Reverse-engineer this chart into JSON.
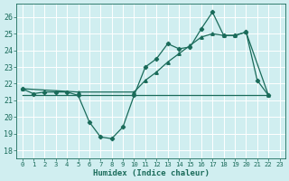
{
  "xlabel": "Humidex (Indice chaleur)",
  "bg_color": "#d0eef0",
  "grid_color": "#ffffff",
  "line_color": "#1a6b5a",
  "xlim": [
    -0.5,
    23.5
  ],
  "ylim": [
    17.5,
    26.8
  ],
  "yticks": [
    18,
    19,
    20,
    21,
    22,
    23,
    24,
    25,
    26
  ],
  "xticks": [
    0,
    1,
    2,
    3,
    4,
    5,
    6,
    7,
    8,
    9,
    10,
    11,
    12,
    13,
    14,
    15,
    16,
    17,
    18,
    19,
    20,
    21,
    22,
    23
  ],
  "line1_x": [
    0,
    1,
    2,
    3,
    4,
    5,
    6,
    7,
    8,
    9,
    10,
    11,
    12,
    13,
    14,
    15,
    16,
    17,
    18,
    19,
    20,
    21,
    22
  ],
  "line1_y": [
    21.7,
    21.4,
    21.5,
    21.5,
    21.5,
    21.3,
    19.7,
    18.8,
    18.7,
    19.4,
    21.3,
    23.0,
    23.5,
    24.4,
    24.1,
    24.2,
    25.3,
    26.3,
    24.9,
    24.9,
    25.1,
    22.2,
    21.3
  ],
  "line2_x": [
    0,
    22
  ],
  "line2_y": [
    21.3,
    21.3
  ],
  "line3_x": [
    0,
    5,
    10,
    11,
    12,
    13,
    14,
    15,
    16,
    17,
    18,
    19,
    20,
    22
  ],
  "line3_y": [
    21.7,
    21.5,
    21.5,
    22.2,
    22.7,
    23.3,
    23.8,
    24.3,
    24.8,
    25.0,
    24.9,
    24.9,
    25.1,
    21.3
  ],
  "figwidth": 3.2,
  "figheight": 2.0,
  "dpi": 100
}
